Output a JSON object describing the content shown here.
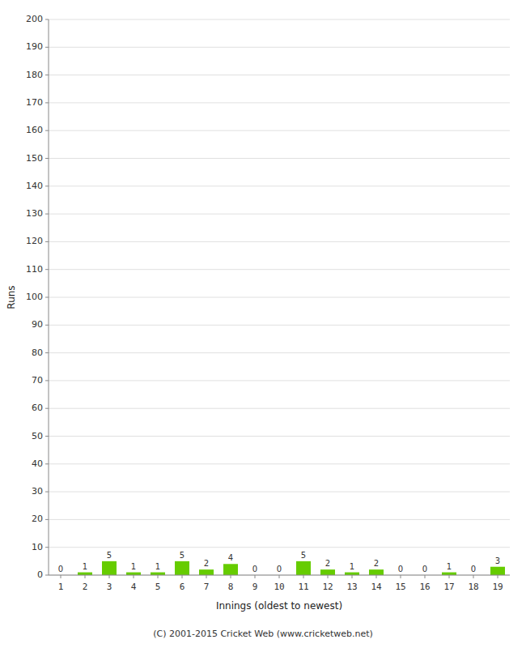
{
  "chart_data": {
    "type": "bar",
    "xlabel": "Innings (oldest to newest)",
    "ylabel": "Runs",
    "categories": [
      "1",
      "2",
      "3",
      "4",
      "5",
      "6",
      "7",
      "8",
      "9",
      "10",
      "11",
      "12",
      "13",
      "14",
      "15",
      "16",
      "17",
      "18",
      "19"
    ],
    "values": [
      0,
      1,
      5,
      1,
      1,
      5,
      2,
      4,
      0,
      0,
      5,
      2,
      1,
      2,
      0,
      0,
      1,
      0,
      3
    ],
    "color": "#66cc00",
    "ylim": [
      0,
      200
    ],
    "yticks": [
      0,
      10,
      20,
      30,
      40,
      50,
      60,
      70,
      80,
      90,
      100,
      110,
      120,
      130,
      140,
      150,
      160,
      170,
      180,
      190,
      200
    ],
    "grid": true,
    "data_labels": true,
    "annotations": [
      "(C) 2001-2015 Cricket Web (www.cricketweb.net)"
    ]
  }
}
